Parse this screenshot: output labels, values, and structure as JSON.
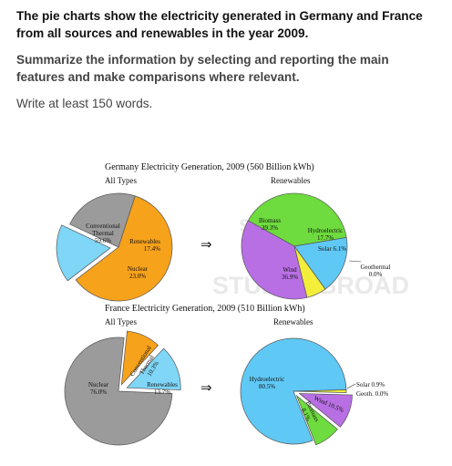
{
  "task": {
    "line1": "The pie charts show the electricity generated in Germany and France",
    "line2": "from all sources and renewables in the year 2009.",
    "instruction1": "Summarize the information by selecting and reporting the main",
    "instruction2": "features and make comparisons where relevant.",
    "word_count": "Write at least 150 words."
  },
  "watermark": {
    "line1": "shiksha",
    "line2": "STUDY ABROAD"
  },
  "arrow": "⇒",
  "colors": {
    "conventional": "#F7A21B",
    "renewables": "#7FD6F7",
    "nuclear": "#9B9B9B",
    "biomass": "#6EDB3E",
    "hydro": "#5FC8F5",
    "solar": "#F2EE3A",
    "wind": "#B86FE3",
    "geothermal": "#F5C26B"
  },
  "chart_data": [
    {
      "type": "pie",
      "title": "Germany Electricity Generation, 2009 (560 Billion kWh)",
      "subtitle": "All Types",
      "slices": [
        {
          "label": "Conventional\nThermal",
          "value": 59.6,
          "display": "59.6%",
          "color": "#F7A21B"
        },
        {
          "label": "Renewables",
          "value": 17.4,
          "display": "17.4%",
          "color": "#7FD6F7"
        },
        {
          "label": "Nuclear",
          "value": 23.0,
          "display": "23.0%",
          "color": "#9B9B9B"
        }
      ]
    },
    {
      "type": "pie",
      "title": "",
      "subtitle": "Renewables",
      "slices": [
        {
          "label": "Biomass",
          "value": 39.3,
          "display": "39.3%",
          "color": "#6EDB3E"
        },
        {
          "label": "Hydroelectric",
          "value": 17.7,
          "display": "17.7%",
          "color": "#5FC8F5"
        },
        {
          "label": "Solar",
          "value": 6.1,
          "display": "6.1%",
          "color": "#F2EE3A"
        },
        {
          "label": "Geothermal",
          "value": 0.0,
          "display": "0.0%",
          "color": "#F5C26B"
        },
        {
          "label": "Wind",
          "value": 36.9,
          "display": "36.9%",
          "color": "#B86FE3"
        }
      ]
    },
    {
      "type": "pie",
      "title": "France Electricity Generation, 2009 (510 Billion kWh)",
      "subtitle": "All Types",
      "slices": [
        {
          "label": "Conventional\nThermal",
          "value": 10.3,
          "display": "10.3%",
          "color": "#F7A21B"
        },
        {
          "label": "Renewables",
          "value": 13.7,
          "display": "13.7%",
          "color": "#7FD6F7"
        },
        {
          "label": "Nuclear",
          "value": 76.0,
          "display": "76.0%",
          "color": "#9B9B9B"
        }
      ]
    },
    {
      "type": "pie",
      "title": "",
      "subtitle": "Renewables",
      "slices": [
        {
          "label": "Solar",
          "value": 0.9,
          "display": "0.9%",
          "color": "#F2EE3A"
        },
        {
          "label": "Geoth.",
          "value": 0.0,
          "display": "0.0%",
          "color": "#F5C26B"
        },
        {
          "label": "Wind",
          "value": 10.5,
          "display": "10.5%",
          "color": "#B86FE3"
        },
        {
          "label": "Biomass",
          "value": 8.1,
          "display": "8.1%",
          "color": "#6EDB3E"
        },
        {
          "label": "Hydroelectric",
          "value": 80.5,
          "display": "80.5%",
          "color": "#5FC8F5"
        }
      ]
    }
  ]
}
